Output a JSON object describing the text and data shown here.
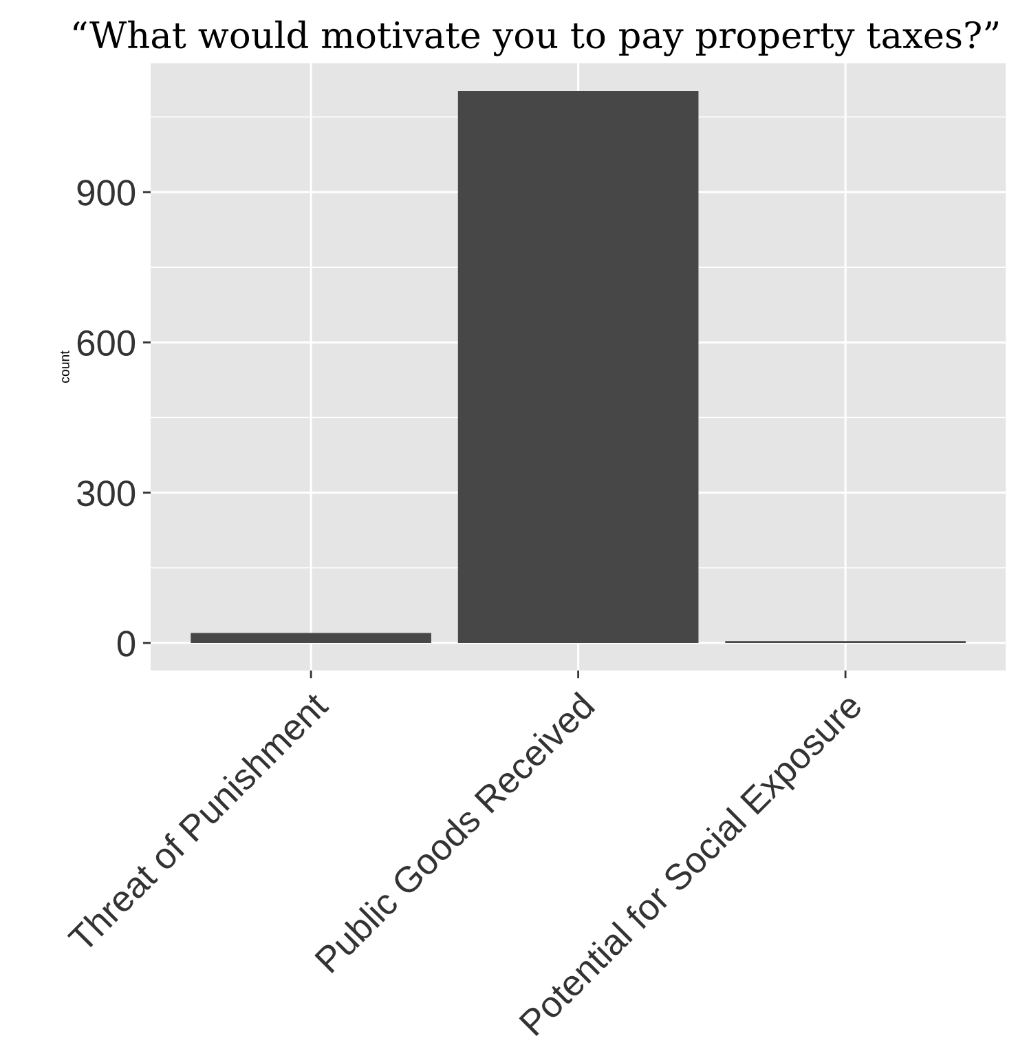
{
  "chart_data": {
    "type": "bar",
    "title": "“What would motivate you to pay property taxes?”",
    "ylabel": "count",
    "categories": [
      "Threat of Punishment",
      "Public Goods Received",
      "Potential for Social Exposure"
    ],
    "values": [
      20,
      1102,
      4
    ],
    "color": "#474747",
    "ylim": [
      -55,
      1157
    ],
    "yticks": [
      0,
      {
        "value": 150,
        "label": null
      },
      300,
      {
        "value": 450,
        "label": null
      },
      600,
      {
        "value": 750,
        "label": null
      },
      900,
      {
        "value": 1050,
        "label": null
      }
    ],
    "grid": true
  }
}
